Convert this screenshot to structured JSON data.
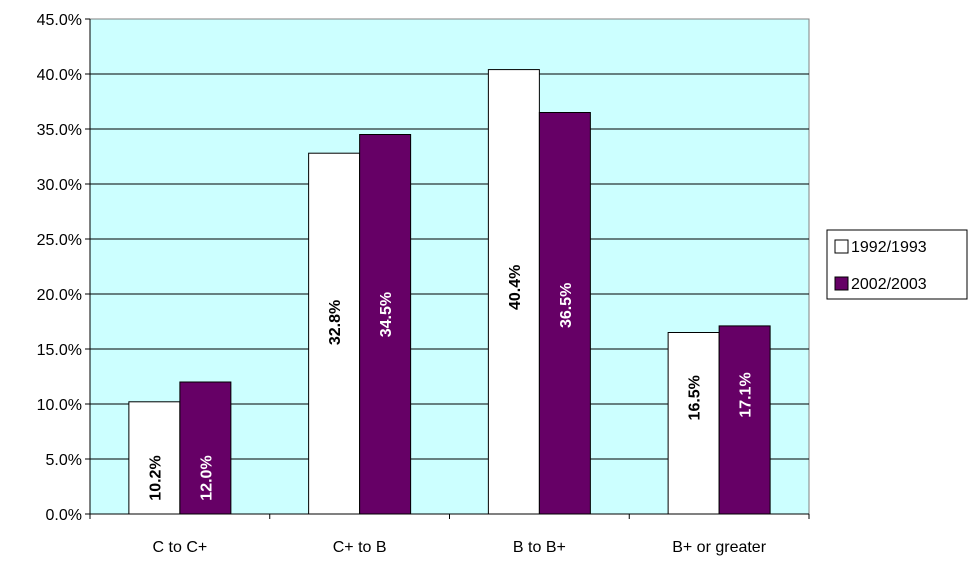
{
  "chart_data": {
    "type": "bar",
    "title": "",
    "xlabel": "",
    "ylabel": "",
    "categories": [
      "C to C+",
      "C+ to B",
      "B to B+",
      "B+ or greater"
    ],
    "series": [
      {
        "name": "1992/1993",
        "values": [
          10.2,
          32.8,
          40.4,
          16.5
        ],
        "labels": [
          "10.2%",
          "32.8%",
          "40.4%",
          "16.5%"
        ],
        "color": "#ffffff",
        "label_color": "#000000"
      },
      {
        "name": "2002/2003",
        "values": [
          12.0,
          34.5,
          36.5,
          17.1
        ],
        "labels": [
          "12.0%",
          "34.5%",
          "36.5%",
          "17.1%"
        ],
        "color": "#660066",
        "label_color": "#ffffff"
      }
    ],
    "ylim": [
      0,
      45
    ],
    "yticks": [
      {
        "value": 0,
        "label": "0.0%"
      },
      {
        "value": 5,
        "label": "5.0%"
      },
      {
        "value": 10,
        "label": "10.0%"
      },
      {
        "value": 15,
        "label": "15.0%"
      },
      {
        "value": 20,
        "label": "20.0%"
      },
      {
        "value": 25,
        "label": "25.0%"
      },
      {
        "value": 30,
        "label": "30.0%"
      },
      {
        "value": 35,
        "label": "35.0%"
      },
      {
        "value": 40,
        "label": "40.0%"
      },
      {
        "value": 45,
        "label": "45.0%"
      }
    ],
    "grid": true,
    "plot_background": "#ccffff",
    "legend": {
      "placement": "right",
      "entries": [
        "1992/1993",
        "2002/2003"
      ]
    }
  }
}
